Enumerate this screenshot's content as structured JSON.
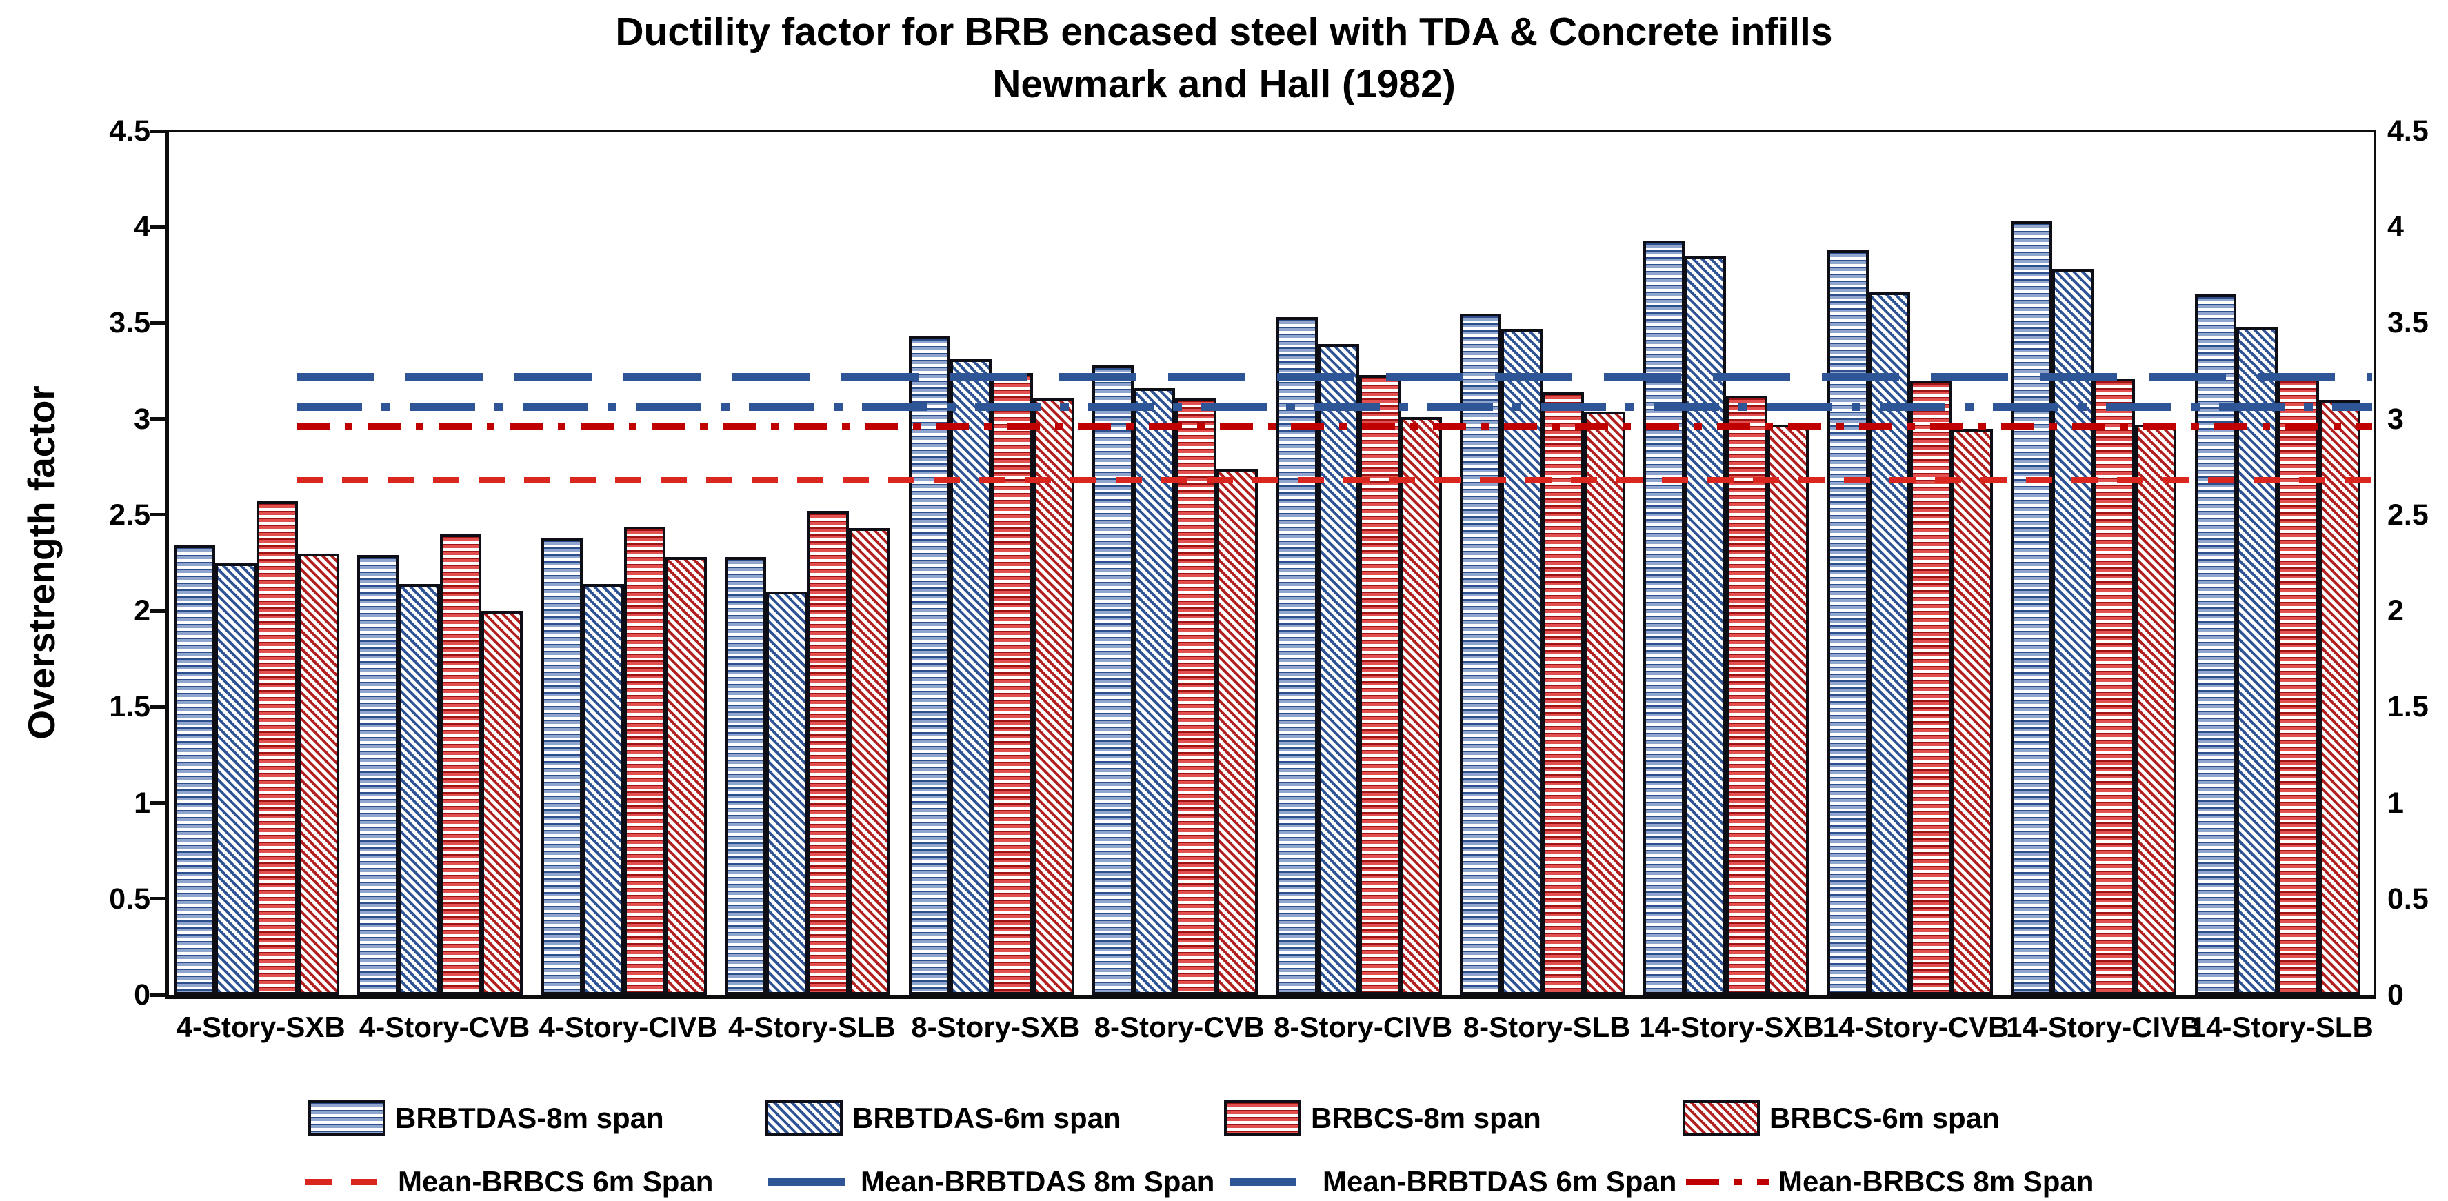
{
  "chart_data": {
    "type": "bar",
    "title": "Ductility factor for BRB encased steel with TDA & Concrete infills",
    "subtitle": "Newmark and Hall (1982)",
    "ylabel": "Overstrength factor",
    "ylim": [
      0,
      4.5
    ],
    "y_ticks": [
      "0",
      "0.5",
      "1",
      "1.5",
      "2",
      "2.5",
      "3",
      "3.5",
      "4",
      "4.5"
    ],
    "grid": false,
    "legend_position": "bottom",
    "categories": [
      "4-Story-SXB",
      "4-Story-CVB",
      "4-Story-CIVB",
      "4-Story-SLB",
      "8-Story-SXB",
      "8-Story-CVB",
      "8-Story-CIVB",
      "8-Story-SLB",
      "14-Story-SXB",
      "14-Story-CVB",
      "14-Story-CIVB",
      "14-Story-SLB"
    ],
    "series": [
      {
        "name": "BRBTDAS-8m span",
        "pattern": "blue-horizontal-stripes",
        "fill_class": "fill-blue-h",
        "values": [
          2.34,
          2.29,
          2.38,
          2.28,
          3.43,
          3.28,
          3.53,
          3.55,
          3.93,
          3.88,
          4.03,
          3.65
        ]
      },
      {
        "name": "BRBTDAS-6m span",
        "pattern": "blue-diagonal-stripes",
        "fill_class": "fill-blue-d",
        "values": [
          2.25,
          2.14,
          2.14,
          2.1,
          3.31,
          3.16,
          3.39,
          3.47,
          3.85,
          3.66,
          3.78,
          3.48
        ]
      },
      {
        "name": "BRBCS-8m span",
        "pattern": "red-horizontal-stripes",
        "fill_class": "fill-red-h",
        "values": [
          2.57,
          2.4,
          2.44,
          2.52,
          3.24,
          3.11,
          3.23,
          3.14,
          3.12,
          3.2,
          3.21,
          3.21
        ]
      },
      {
        "name": "BRBCS-6m span",
        "pattern": "red-diagonal-stripes",
        "fill_class": "fill-red-d",
        "values": [
          2.3,
          2.0,
          2.28,
          2.43,
          3.11,
          2.74,
          3.01,
          3.04,
          2.97,
          2.95,
          2.97,
          3.1
        ]
      }
    ],
    "mean_lines": [
      {
        "label": "Mean-BRBCS 6m Span",
        "value": 2.68,
        "style": "red-dash",
        "color": "#d9261f"
      },
      {
        "label": "Mean-BRBTDAS 8m Span",
        "value": 3.22,
        "style": "blue-longdash",
        "color": "#2e5596"
      },
      {
        "label": "Mean-BRBTDAS 6m Span",
        "value": 3.06,
        "style": "blue-dashdot",
        "color": "#2e5596"
      },
      {
        "label": "Mean-BRBCS 8m Span",
        "value": 2.96,
        "style": "red-dashdot",
        "color": "#c00000"
      }
    ],
    "colors": {
      "blue": "#2e5596",
      "light_blue_stripe": "#8fa5cd",
      "red": "#d9261f",
      "dark_red": "#b32020",
      "bar_border": "#0e0e16",
      "axis": "#0d0d0d"
    }
  }
}
